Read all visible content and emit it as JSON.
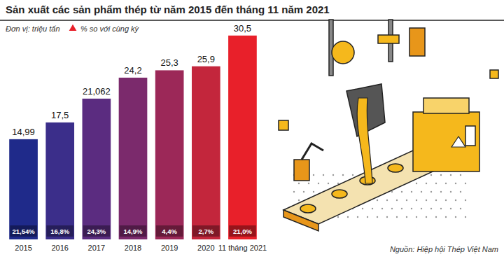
{
  "chart_data": {
    "type": "bar",
    "title": "Sản xuất các sản phẩm thép từ năm 2015 đến tháng 11 năm 2021",
    "subtitle": "Đơn vị: triệu tấn",
    "source": "Nguồn: Hiệp hội Thép Việt Nam",
    "categories": [
      "2015",
      "2016",
      "2017",
      "2018",
      "2019",
      "2020",
      "11 tháng 2021"
    ],
    "values": [
      14.99,
      17.5,
      21.062,
      24.2,
      25.3,
      25.9,
      30.5
    ],
    "value_labels": [
      "14,99",
      "17,5",
      "21,062",
      "24,2",
      "25,3",
      "25,9",
      "30,5"
    ],
    "colors": [
      "#1f2a8a",
      "#3b2e8a",
      "#5b2c80",
      "#7b2a6c",
      "#9c2858",
      "#c3263c",
      "#e8202a"
    ],
    "data_labels": true,
    "tick_labels": "x",
    "grid": false,
    "legend": "top-left",
    "ylim": [
      0,
      31
    ],
    "growth": {
      "name": "% so với cùng kỳ",
      "values": [
        21.54,
        16.8,
        24.3,
        14.9,
        4.4,
        2.7,
        21.0
      ],
      "value_labels": [
        "21,54%",
        "16,8%",
        "24,3%",
        "14,9%",
        "4,4%",
        "2,7%",
        "21,0%"
      ],
      "color": "#e8202a",
      "marker": "triangle"
    }
  }
}
